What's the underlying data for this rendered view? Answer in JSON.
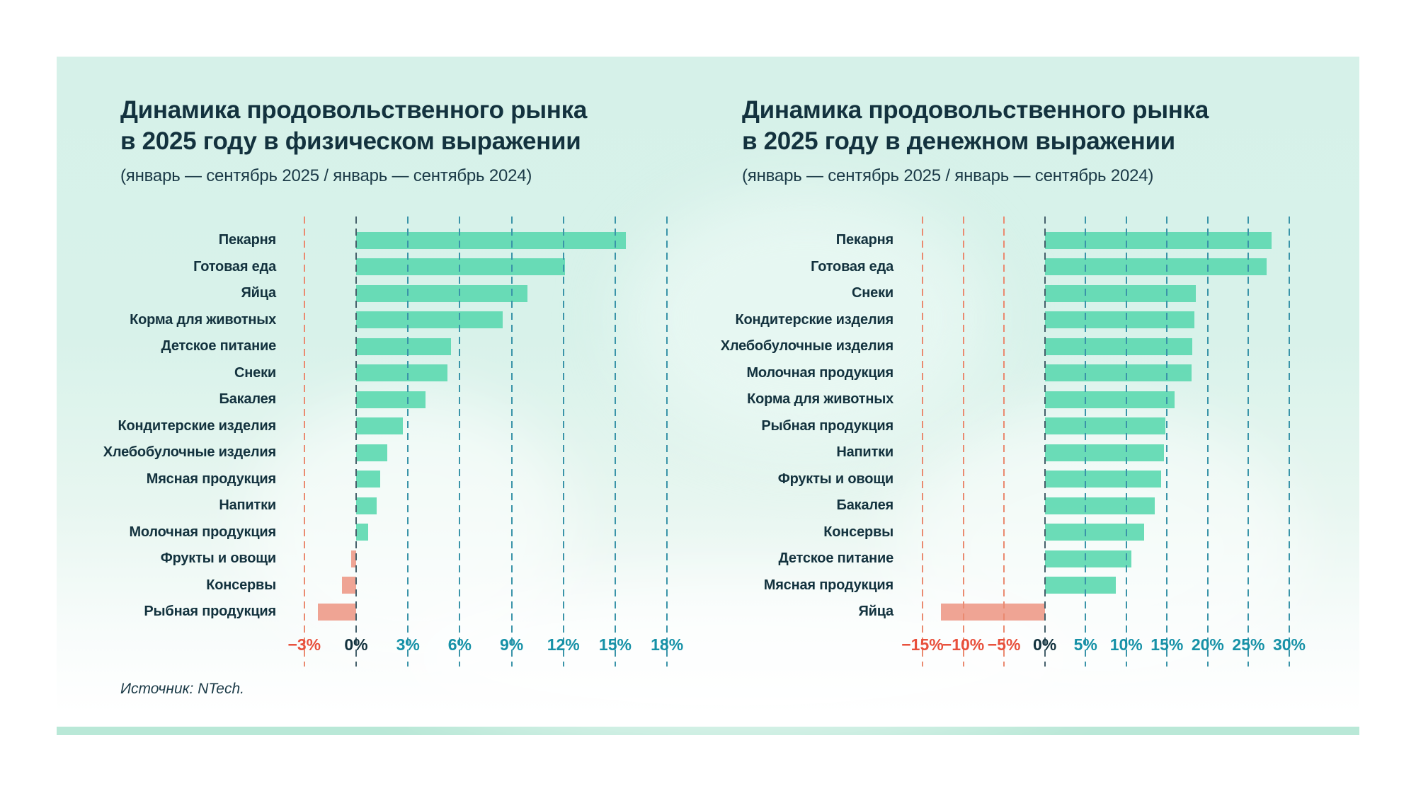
{
  "source": "Источник: NTech.",
  "colors": {
    "title": "#13323e",
    "bar_positive": "#5ed9b1",
    "bar_negative": "#ee9c8b",
    "tick_negative": "#e8503c",
    "tick_zero": "#13323e",
    "tick_positive": "#1691a7",
    "grid_negative": "#ea8a70",
    "grid_zero": "#45606b",
    "grid_positive": "#3a94a9",
    "card_background": "#d6f1e9",
    "divider": "#b9e8d7"
  },
  "chart_data": [
    {
      "type": "bar",
      "orientation": "horizontal",
      "title_line1": "Динамика продовольственного рынка",
      "title_line2": "в 2025 году в физическом выражении",
      "subtitle": "(январь — сентябрь 2025 / январь — сентябрь 2024)",
      "unit": "%",
      "grid": true,
      "xlim": [
        -3.73,
        18.65
      ],
      "ticks": [
        -3,
        0,
        3,
        6,
        9,
        12,
        15,
        18
      ],
      "tick_labels": [
        "−3%",
        "0%",
        "3%",
        "6%",
        "9%",
        "12%",
        "15%",
        "18%"
      ],
      "categories": [
        "Пекарня",
        "Готовая еда",
        "Яйца",
        "Корма для животных",
        "Детское питание",
        "Снеки",
        "Бакалея",
        "Кондитерские изделия",
        "Хлебобулочные изделия",
        "Мясная продукция",
        "Напитки",
        "Молочная продукция",
        "Фрукты и овощи",
        "Консервы",
        "Рыбная продукция"
      ],
      "values": [
        15.6,
        12.1,
        9.9,
        8.5,
        5.5,
        5.3,
        4.0,
        2.7,
        1.8,
        1.4,
        1.2,
        0.7,
        -0.3,
        -0.8,
        -2.2
      ]
    },
    {
      "type": "bar",
      "orientation": "horizontal",
      "title_line1": "Динамика продовольственного рынка",
      "title_line2": "в 2025 году в денежном выражении",
      "subtitle": "(январь — сентябрь 2025 / январь — сентябрь 2024)",
      "unit": "%",
      "grid": true,
      "xlim": [
        -16.3,
        31.65
      ],
      "ticks": [
        -15,
        -10,
        -5,
        0,
        5,
        10,
        15,
        20,
        25,
        30
      ],
      "tick_labels": [
        "−15%",
        "−10%",
        "−5%",
        "0%",
        "5%",
        "10%",
        "15%",
        "20%",
        "25%",
        "30%"
      ],
      "categories": [
        "Пекарня",
        "Готовая еда",
        "Снеки",
        "Кондитерские изделия",
        "Хлебобулочные изделия",
        "Молочная продукция",
        "Корма для животных",
        "Рыбная продукция",
        "Напитки",
        "Фрукты и овощи",
        "Бакалея",
        "Консервы",
        "Детское питание",
        "Мясная продукция",
        "Яйца"
      ],
      "values": [
        27.8,
        27.2,
        18.5,
        18.4,
        18.1,
        18.0,
        15.9,
        14.8,
        14.6,
        14.3,
        13.5,
        12.2,
        10.6,
        8.7,
        -12.7
      ]
    }
  ]
}
